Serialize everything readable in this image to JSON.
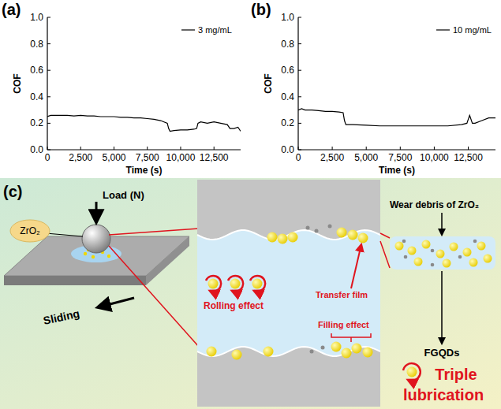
{
  "chart_data": [
    {
      "type": "line",
      "annotations": [
        "(a)"
      ],
      "x_label": "Time (s)",
      "y_label": "COF",
      "x": [
        0,
        250,
        500,
        1000,
        1500,
        2000,
        2500,
        3000,
        3500,
        4000,
        4500,
        5000,
        5500,
        6000,
        6500,
        7000,
        7500,
        8000,
        8500,
        9000,
        9100,
        9200,
        9500,
        10000,
        10500,
        11000,
        11200,
        11300,
        11500,
        12000,
        12500,
        13000,
        13500,
        13700,
        14000,
        14300,
        14500
      ],
      "series": [
        {
          "name": "3 mg/mL",
          "color": "#000000",
          "values": [
            0.25,
            0.26,
            0.26,
            0.26,
            0.26,
            0.255,
            0.26,
            0.255,
            0.255,
            0.25,
            0.25,
            0.25,
            0.245,
            0.245,
            0.24,
            0.24,
            0.235,
            0.23,
            0.22,
            0.2,
            0.16,
            0.14,
            0.145,
            0.15,
            0.15,
            0.155,
            0.16,
            0.2,
            0.21,
            0.2,
            0.21,
            0.2,
            0.19,
            0.16,
            0.16,
            0.17,
            0.14
          ]
        }
      ],
      "xlim": [
        0,
        14500
      ],
      "ylim": [
        0,
        1
      ],
      "xticks": [
        0,
        {
          "value": 2500,
          "label": "2,500"
        },
        {
          "value": 5000,
          "label": "5,000"
        },
        {
          "value": 7500,
          "label": "7,500"
        },
        {
          "value": 10000,
          "label": "10,000"
        },
        {
          "value": 12500,
          "label": "12,500"
        }
      ],
      "yticks": [
        {
          "value": 0,
          "label": "0.0"
        },
        {
          "value": 0.2,
          "label": "0.2"
        },
        {
          "value": 0.4,
          "label": "0.4"
        },
        {
          "value": 0.6,
          "label": "0.6"
        },
        {
          "value": 0.8,
          "label": "0.8"
        },
        {
          "value": 1,
          "label": "1.0"
        }
      ],
      "legend": "upper right",
      "grid": false
    },
    {
      "type": "line",
      "annotations": [
        "(b)"
      ],
      "x_label": "Time (s)",
      "y_label": "COF",
      "x": [
        0,
        250,
        500,
        1000,
        1500,
        2000,
        2500,
        3000,
        3300,
        3400,
        3500,
        4000,
        5000,
        6000,
        7000,
        8000,
        9000,
        10000,
        11000,
        12000,
        12400,
        12600,
        12800,
        13000,
        13500,
        14000,
        14500
      ],
      "series": [
        {
          "name": "10 mg/mL",
          "color": "#000000",
          "values": [
            0.3,
            0.31,
            0.3,
            0.3,
            0.295,
            0.29,
            0.29,
            0.285,
            0.28,
            0.22,
            0.19,
            0.19,
            0.185,
            0.18,
            0.18,
            0.18,
            0.18,
            0.18,
            0.18,
            0.19,
            0.2,
            0.26,
            0.2,
            0.2,
            0.22,
            0.24,
            0.24
          ]
        }
      ],
      "xlim": [
        0,
        14500
      ],
      "ylim": [
        0,
        1
      ],
      "xticks": [
        0,
        {
          "value": 2500,
          "label": "2,500"
        },
        {
          "value": 5000,
          "label": "5,000"
        },
        {
          "value": 7500,
          "label": "7,500"
        },
        {
          "value": 10000,
          "label": "10,000"
        },
        {
          "value": 12500,
          "label": "12,500"
        }
      ],
      "yticks": [
        {
          "value": 0,
          "label": "0.0"
        },
        {
          "value": 0.2,
          "label": "0.2"
        },
        {
          "value": 0.4,
          "label": "0.4"
        },
        {
          "value": 0.6,
          "label": "0.6"
        },
        {
          "value": 0.8,
          "label": "0.8"
        },
        {
          "value": 1,
          "label": "1.0"
        }
      ],
      "legend": "upper right",
      "grid": false
    }
  ],
  "diagram": {
    "label": "(c)",
    "load": "Load (N)",
    "ball": "ZrO₂",
    "sliding": "Sliding",
    "rolling": "Rolling effect",
    "transfer": "Transfer film",
    "filling": "Filling effect",
    "debris": "Wear debris of ZrO₂",
    "fgqds": "FGQDs",
    "triple": [
      "Triple",
      "lubrication"
    ]
  }
}
